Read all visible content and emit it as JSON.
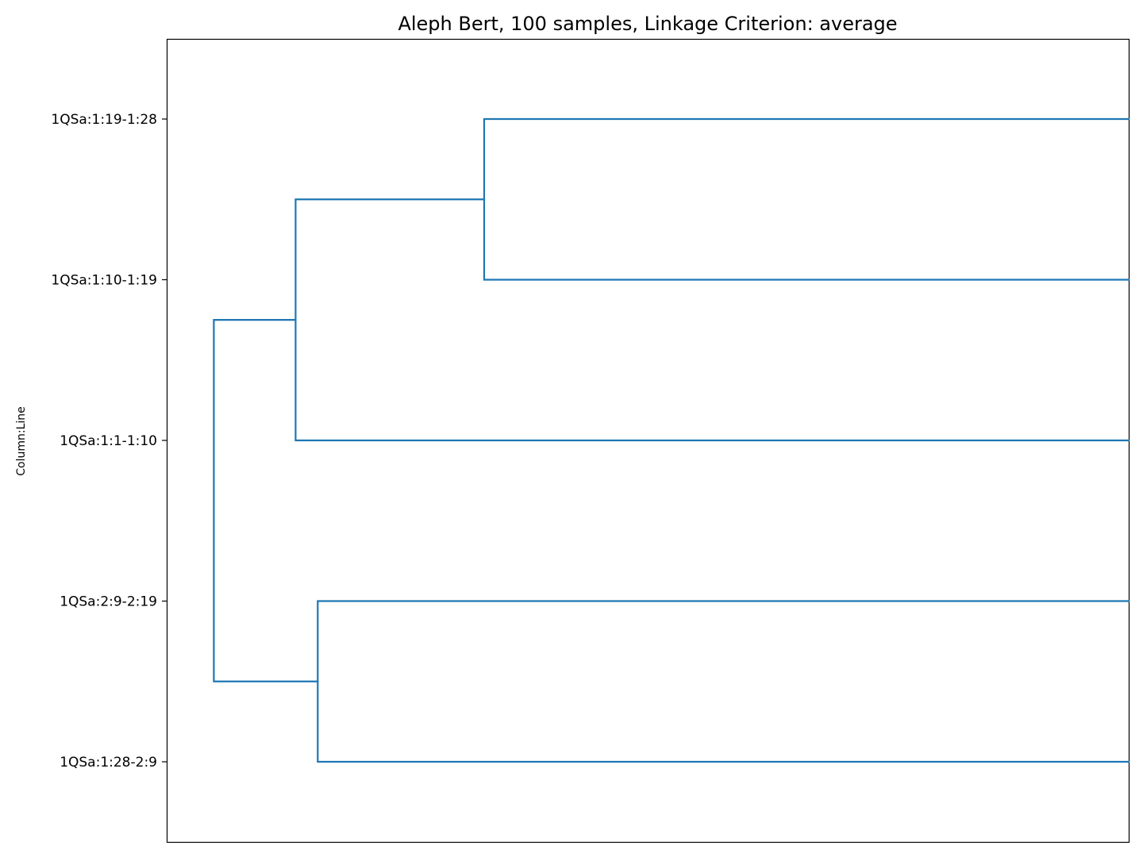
{
  "chart_data": {
    "type": "dendrogram",
    "title": "Aleph Bert, 100 samples, Linkage Criterion: average",
    "ylabel": "Column:Line",
    "xlabel": "",
    "orientation": "left",
    "x_axis_ticks_shown": false,
    "grid": false,
    "leaves": [
      "1QSa:1:19-1:28",
      "1QSa:1:10-1:19",
      "1QSa:1:1-1:10",
      "1QSa:2:9-2:19",
      "1QSa:1:28-2:9"
    ],
    "merges": [
      {
        "left": "1QSa:1:19-1:28",
        "right": "1QSa:1:10-1:19",
        "height": 0.67
      },
      {
        "left": "1QSa:2:9-2:19",
        "right": "1QSa:1:28-2:9",
        "height": 0.843
      },
      {
        "left": "merge-0",
        "right": "1QSa:1:1-1:10",
        "height": 0.866
      },
      {
        "left": "merge-2",
        "right": "merge-1",
        "height": 0.951
      }
    ],
    "xlim": [
      1.0,
      0.0
    ],
    "link_color": "#1f77b4"
  }
}
